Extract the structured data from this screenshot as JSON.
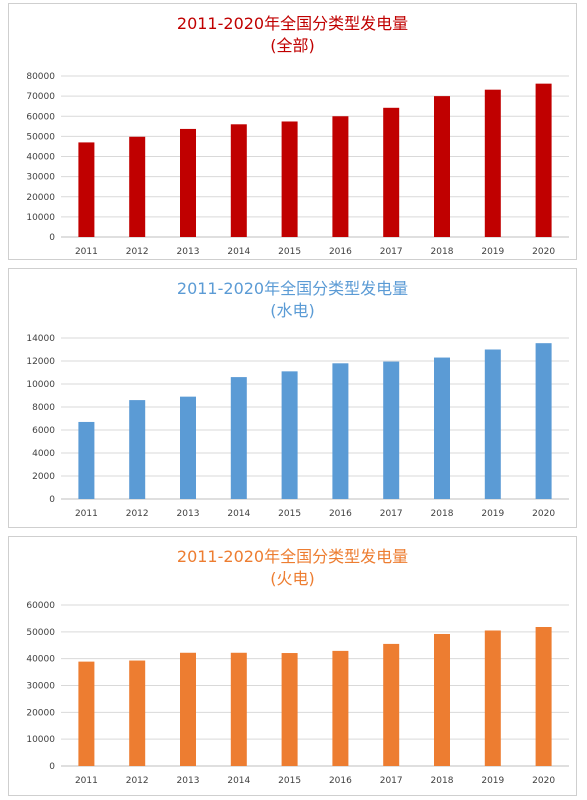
{
  "chart_data": [
    {
      "type": "bar",
      "title": "2011-2020年全国分类型发电量",
      "subtitle": "(全部)",
      "categories": [
        "2011",
        "2012",
        "2013",
        "2014",
        "2015",
        "2016",
        "2017",
        "2018",
        "2019",
        "2020"
      ],
      "values": [
        47000,
        49800,
        53700,
        56000,
        57400,
        60000,
        64200,
        70000,
        73200,
        76200
      ],
      "ylim": [
        0,
        80000
      ],
      "yticks": [
        0,
        10000,
        20000,
        30000,
        40000,
        50000,
        60000,
        70000,
        80000
      ],
      "grid": true,
      "color": "#c00000",
      "title_color": "#c00000"
    },
    {
      "type": "bar",
      "title": "2011-2020年全国分类型发电量",
      "subtitle": "(水电)",
      "categories": [
        "2011",
        "2012",
        "2013",
        "2014",
        "2015",
        "2016",
        "2017",
        "2018",
        "2019",
        "2020"
      ],
      "values": [
        6700,
        8600,
        8900,
        10600,
        11100,
        11800,
        11950,
        12300,
        13000,
        13550
      ],
      "ylim": [
        0,
        14000
      ],
      "yticks": [
        0,
        2000,
        4000,
        6000,
        8000,
        10000,
        12000,
        14000
      ],
      "grid": true,
      "color": "#5b9bd5",
      "title_color": "#5b9bd5"
    },
    {
      "type": "bar",
      "title": "2011-2020年全国分类型发电量",
      "subtitle": "(火电)",
      "categories": [
        "2011",
        "2012",
        "2013",
        "2014",
        "2015",
        "2016",
        "2017",
        "2018",
        "2019",
        "2020"
      ],
      "values": [
        38900,
        39300,
        42200,
        42200,
        42100,
        42900,
        45500,
        49200,
        50500,
        51800
      ],
      "ylim": [
        0,
        60000
      ],
      "yticks": [
        0,
        10000,
        20000,
        30000,
        40000,
        50000,
        60000
      ],
      "grid": true,
      "color": "#ed7d31",
      "title_color": "#ed7d31"
    }
  ]
}
